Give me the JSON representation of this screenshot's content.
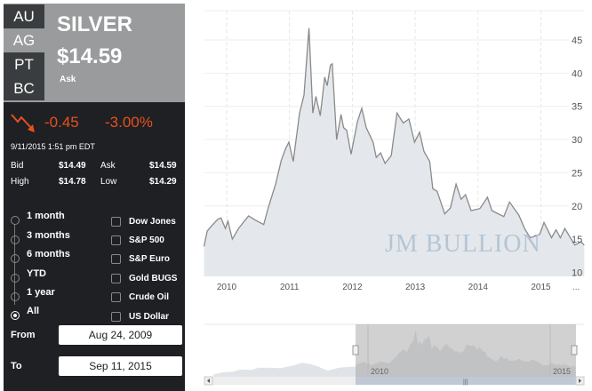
{
  "tabs": [
    {
      "label": "AU"
    },
    {
      "label": "AG"
    },
    {
      "label": "PT"
    },
    {
      "label": "BC"
    }
  ],
  "selected_tab": "AG",
  "metal": "SILVER",
  "price": "$14.59",
  "price_label": "Ask",
  "change": "-0.45",
  "change_pct": "-3.00%",
  "change_color": "#e8501e",
  "timestamp": "9/11/2015 1:51 pm EDT",
  "quotes": {
    "bid_label": "Bid",
    "bid": "$14.49",
    "ask_label": "Ask",
    "ask": "$14.59",
    "high_label": "High",
    "high": "$14.78",
    "low_label": "Low",
    "low": "$14.29"
  },
  "ranges": [
    {
      "label": "1 month"
    },
    {
      "label": "3 months"
    },
    {
      "label": "6 months"
    },
    {
      "label": "YTD"
    },
    {
      "label": "1 year"
    },
    {
      "label": "All",
      "selected": true
    }
  ],
  "compare": [
    {
      "label": "Dow Jones"
    },
    {
      "label": "S&P 500"
    },
    {
      "label": "S&P Euro"
    },
    {
      "label": "Gold BUGS"
    },
    {
      "label": "Crude Oil"
    },
    {
      "label": "US Dollar"
    }
  ],
  "from_label": "From",
  "from_value": "Aug 24, 2009",
  "to_label": "To",
  "to_value": "Sep 11, 2015",
  "watermark": "JM BULLION",
  "chart_data": {
    "type": "area",
    "x_ticks": [
      "2010",
      "2011",
      "2012",
      "2013",
      "2014",
      "2015",
      "..."
    ],
    "y_ticks": [
      "10",
      "15",
      "20",
      "25",
      "30",
      "35",
      "40",
      "45"
    ],
    "ylim": [
      10,
      48
    ],
    "xlim": [
      2009.64,
      2015.7
    ],
    "grid": true,
    "y_axis_side": "right",
    "fill_color": "#e4e8ec",
    "line_color": "#888888",
    "x": [
      2009.64,
      2009.69,
      2009.76,
      2009.86,
      2009.91,
      2009.98,
      2010.02,
      2010.09,
      2010.19,
      2010.28,
      2010.35,
      2010.45,
      2010.59,
      2010.66,
      2010.78,
      2010.87,
      2010.94,
      2010.99,
      2011.06,
      2011.16,
      2011.23,
      2011.31,
      2011.37,
      2011.42,
      2011.49,
      2011.56,
      2011.6,
      2011.65,
      2011.68,
      2011.75,
      2011.82,
      2011.86,
      2011.91,
      2011.98,
      2012.08,
      2012.15,
      2012.22,
      2012.33,
      2012.38,
      2012.45,
      2012.52,
      2012.62,
      2012.71,
      2012.81,
      2012.9,
      2012.99,
      2013.07,
      2013.14,
      2013.23,
      2013.28,
      2013.35,
      2013.47,
      2013.56,
      2013.65,
      2013.73,
      2013.8,
      2013.89,
      2014.03,
      2014.15,
      2014.22,
      2014.41,
      2014.5,
      2014.65,
      2014.74,
      2014.83,
      2014.98,
      2015.05,
      2015.17,
      2015.24,
      2015.31,
      2015.38,
      2015.54,
      2015.64,
      2015.69
    ],
    "y": [
      13.9,
      16.2,
      17.0,
      18.0,
      18.2,
      16.6,
      17.7,
      15.0,
      16.6,
      17.7,
      18.5,
      17.9,
      17.2,
      19.7,
      23.3,
      26.9,
      28.7,
      29.6,
      26.7,
      34.0,
      36.7,
      46.8,
      34.0,
      36.5,
      33.6,
      39.4,
      38.1,
      41.2,
      41.4,
      30.0,
      33.8,
      31.8,
      31.4,
      27.8,
      32.7,
      34.7,
      31.8,
      29.6,
      27.3,
      28.0,
      26.4,
      27.6,
      34.0,
      32.5,
      33.1,
      29.6,
      31.1,
      28.2,
      26.7,
      22.6,
      22.2,
      18.8,
      19.7,
      23.3,
      21.0,
      21.7,
      19.3,
      19.6,
      21.3,
      19.3,
      18.4,
      20.6,
      18.6,
      16.6,
      15.2,
      15.7,
      17.5,
      15.2,
      16.4,
      15.2,
      16.6,
      14.1,
      14.6,
      14.1
    ]
  },
  "navigator": {
    "x_ticks": [
      "2010",
      "2015"
    ],
    "early_x": [
      2005.76,
      2006.0,
      2006.3,
      2006.5,
      2006.8,
      2007.0,
      2007.3,
      2007.6,
      2007.9,
      2008.2,
      2008.4,
      2008.6,
      2008.9,
      2009.2,
      2009.5
    ],
    "early_y": [
      7.2,
      8.8,
      9.6,
      11.5,
      11.2,
      13.2,
      13.0,
      12.8,
      14.8,
      17.5,
      16.5,
      14.5,
      10.5,
      13.2,
      14.0
    ],
    "selected_range": [
      "Aug 24, 2009",
      "Sep 11, 2015"
    ]
  }
}
